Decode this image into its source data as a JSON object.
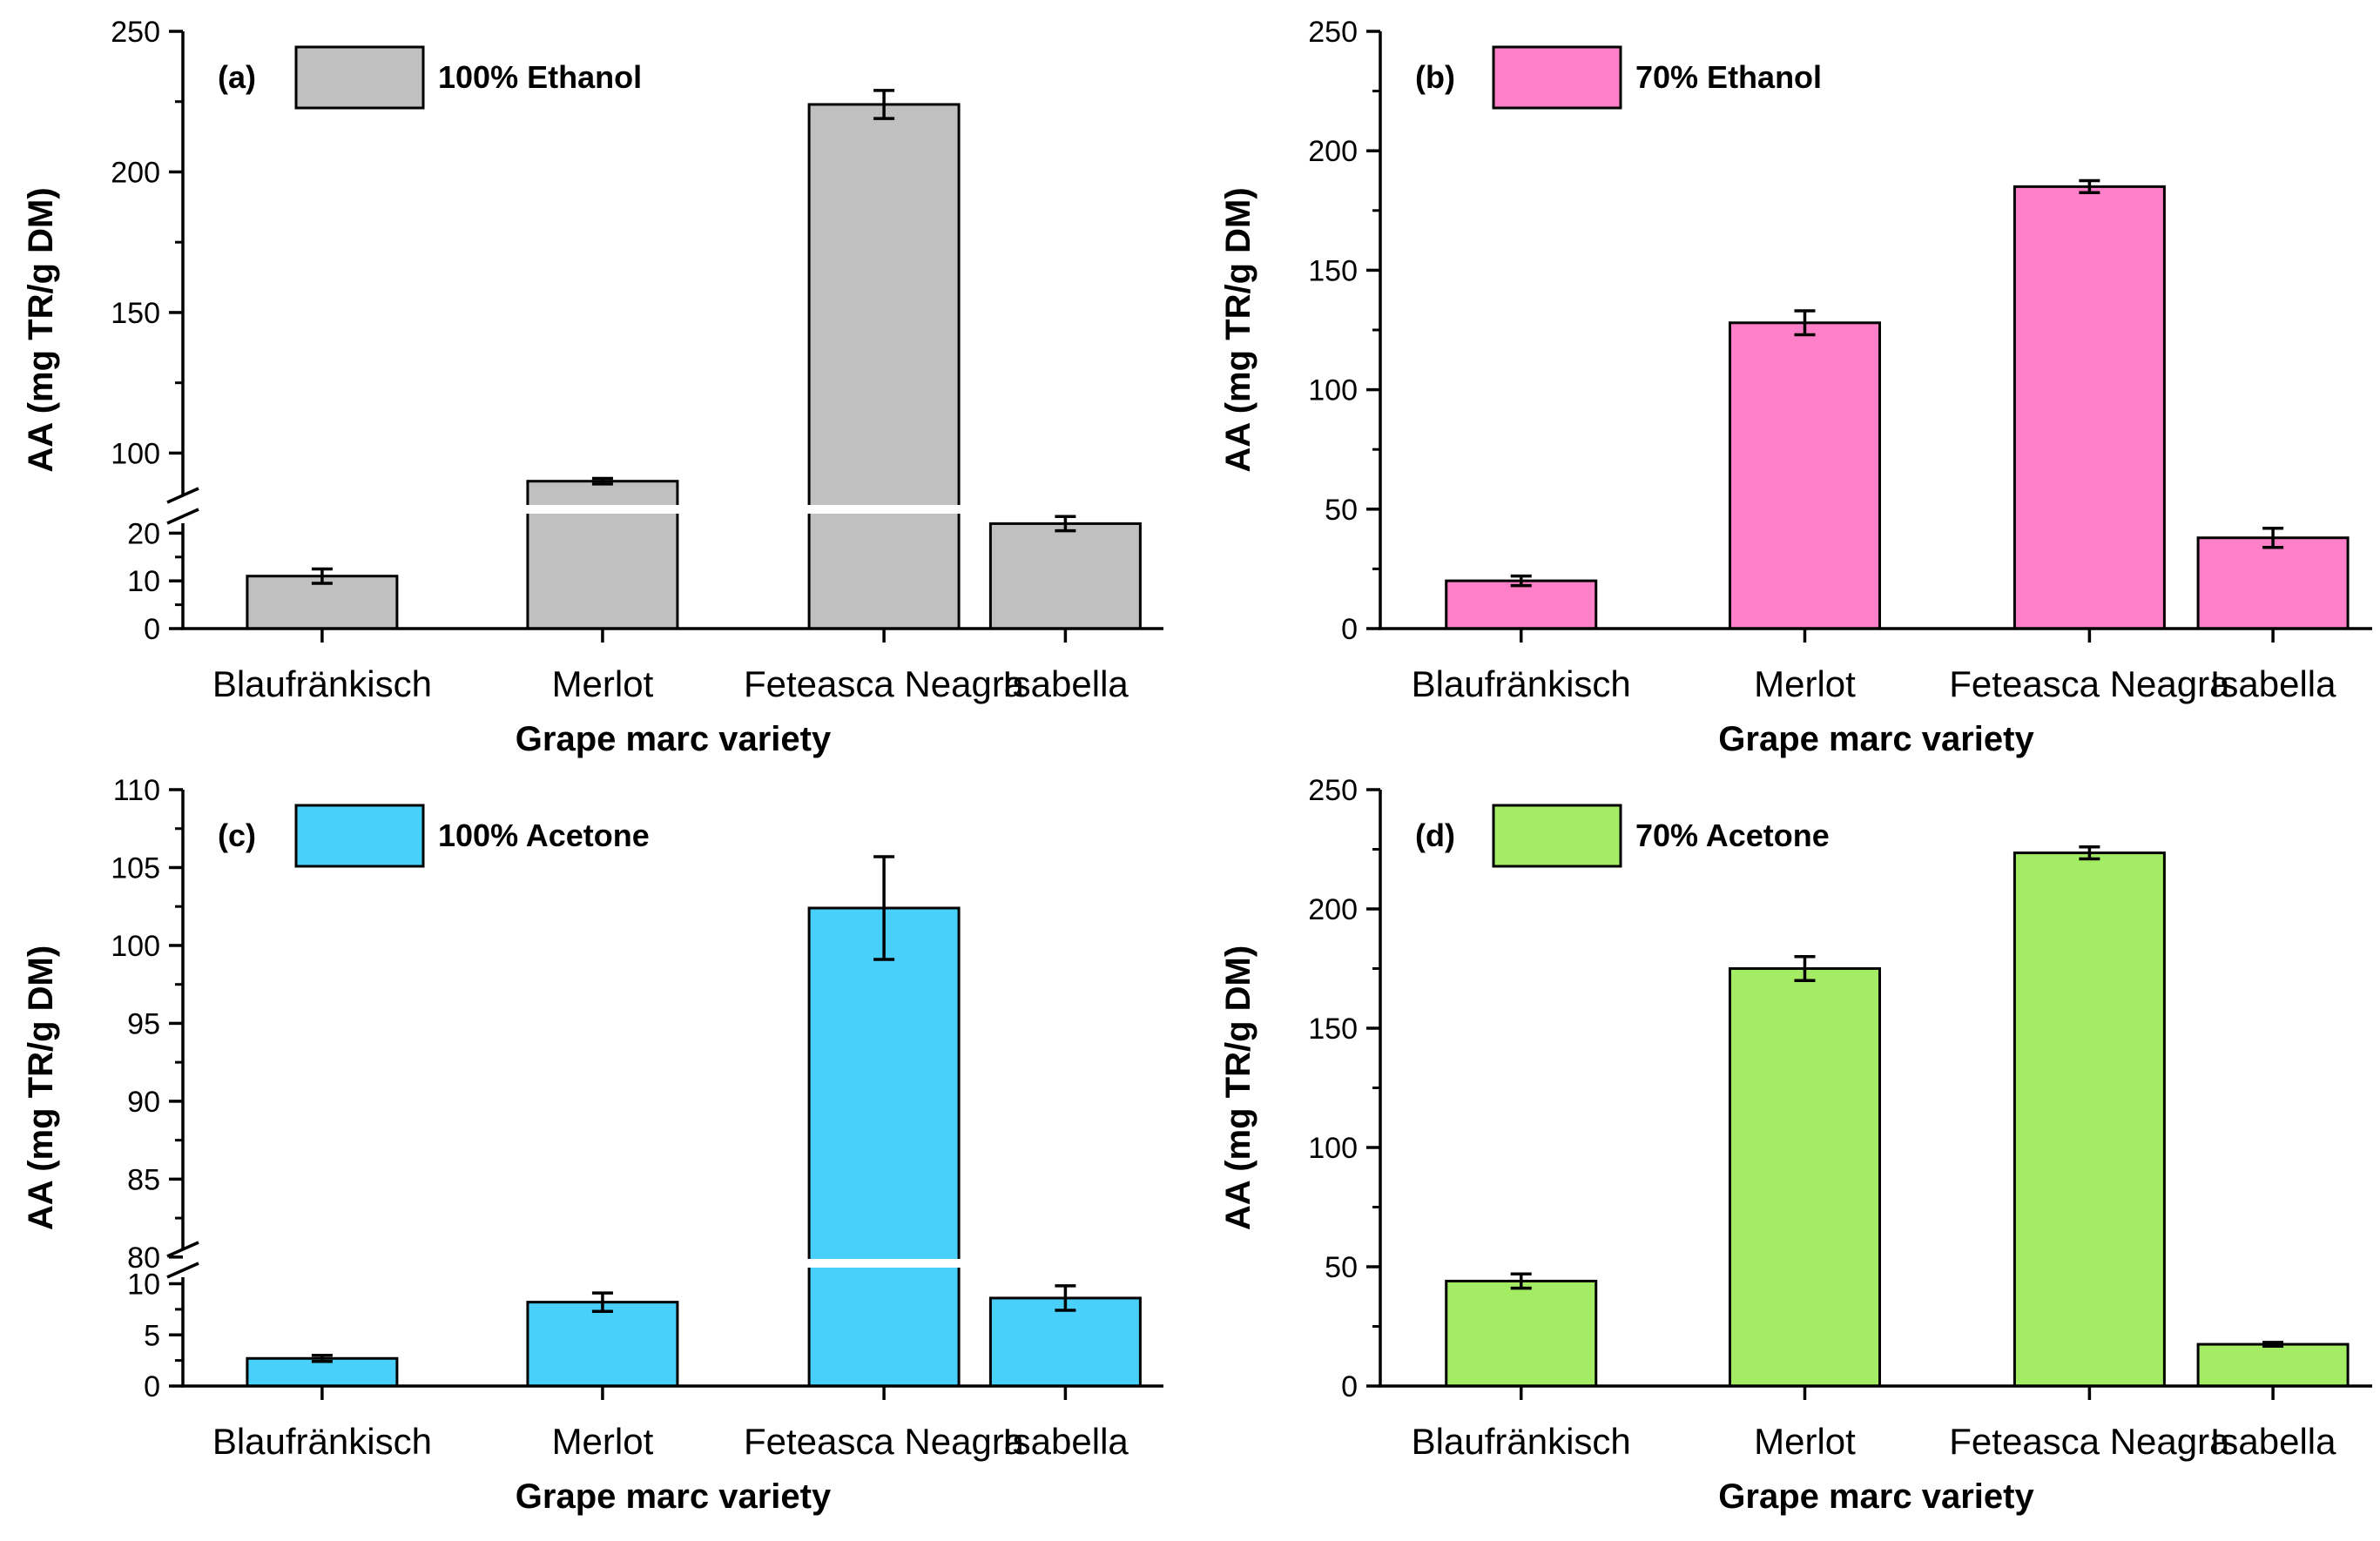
{
  "chart_data": [
    {
      "type": "bar",
      "panel_label": "(a)",
      "legend": "100% Ethanol",
      "color": "#c0c0c0",
      "categories": [
        "Blaufränkisch",
        "Merlot",
        "Feteasca Neagra",
        "Isabella"
      ],
      "values": [
        11,
        90,
        224,
        22
      ],
      "errors": [
        1.5,
        1,
        5,
        1.5
      ],
      "xlabel": "Grape marc variety",
      "ylabel": "AA (mg TR/g DM)",
      "broken_axis": true,
      "lower_segment": {
        "ylim": [
          0,
          25
        ],
        "ticks": [
          0,
          10,
          20
        ]
      },
      "upper_segment": {
        "ylim": [
          80,
          250
        ],
        "ticks": [
          100,
          150,
          200,
          250
        ]
      }
    },
    {
      "type": "bar",
      "panel_label": "(b)",
      "legend": "70% Ethanol",
      "color": "#ff80c8",
      "categories": [
        "Blaufränkisch",
        "Merlot",
        "Feteasca Neagra",
        "Isabella"
      ],
      "values": [
        20,
        128,
        185,
        38
      ],
      "errors": [
        2,
        5,
        2.5,
        4
      ],
      "xlabel": "Grape marc variety",
      "ylabel": "AA (mg TR/g DM)",
      "broken_axis": false,
      "ylim": [
        0,
        250
      ],
      "ticks": [
        0,
        50,
        100,
        150,
        200,
        250
      ]
    },
    {
      "type": "bar",
      "panel_label": "(c)",
      "legend": "100% Acetone",
      "color": "#48d0fa",
      "categories": [
        "Blaufränkisch",
        "Merlot",
        "Feteasca Neagra",
        "Isabella"
      ],
      "values": [
        2.7,
        8.2,
        102.4,
        8.6
      ],
      "errors": [
        0.3,
        0.9,
        3.3,
        1.2
      ],
      "xlabel": "Grape marc variety",
      "ylabel": "AA (mg TR/g DM)",
      "broken_axis": true,
      "lower_segment": {
        "ylim": [
          0,
          12
        ],
        "ticks": [
          0,
          5,
          10
        ]
      },
      "upper_segment": {
        "ylim": [
          79.6,
          110
        ],
        "ticks": [
          80,
          85,
          90,
          95,
          100,
          105,
          110
        ]
      }
    },
    {
      "type": "bar",
      "panel_label": "(d)",
      "legend": "70% Acetone",
      "color": "#a3ec64",
      "categories": [
        "Blaufränkisch",
        "Merlot",
        "Feteasca Neagra",
        "Isabella"
      ],
      "values": [
        44,
        175,
        223.5,
        17.5
      ],
      "errors": [
        3,
        5,
        2.5,
        0.8
      ],
      "xlabel": "Grape marc variety",
      "ylabel": "AA (mg TR/g DM)",
      "broken_axis": false,
      "ylim": [
        0,
        250
      ],
      "ticks": [
        0,
        50,
        100,
        150,
        200,
        250
      ]
    }
  ]
}
